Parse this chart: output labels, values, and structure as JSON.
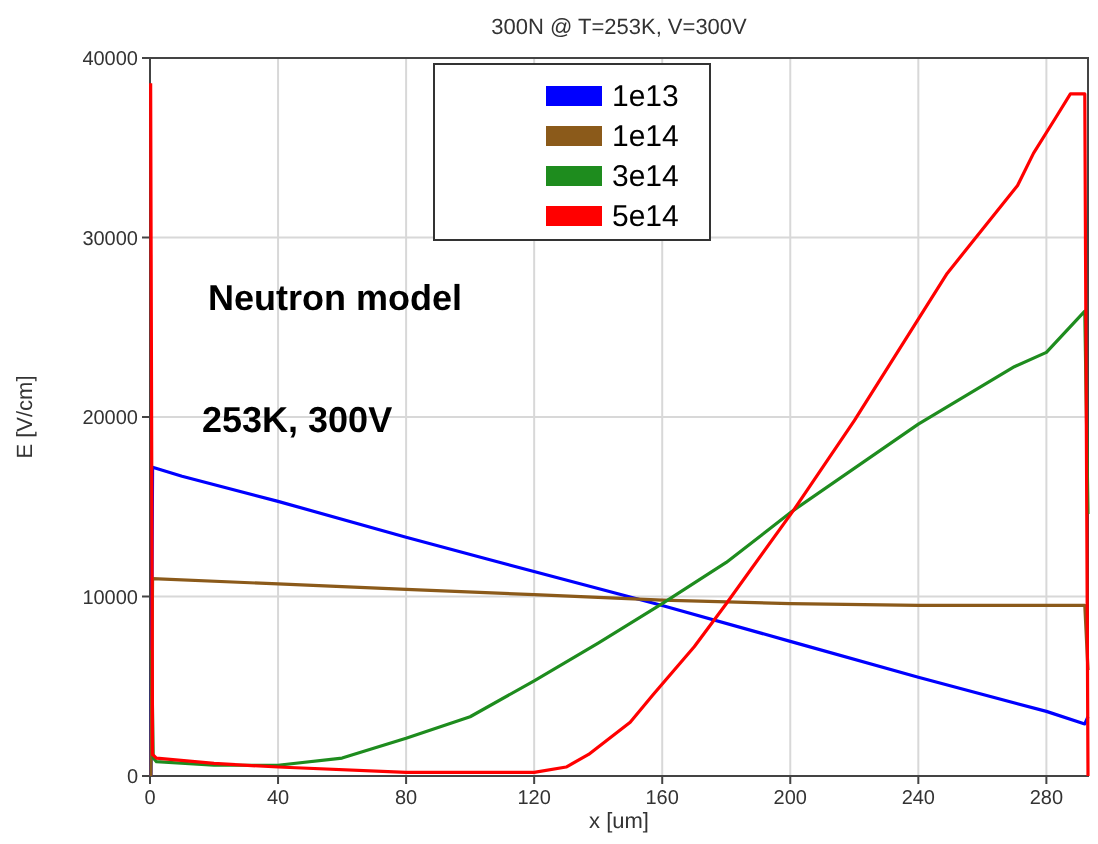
{
  "chart_data": {
    "type": "line",
    "title": "300N @ T=253K, V=300V",
    "xlabel": "x [um]",
    "ylabel": "E [V/cm]",
    "annotations": [
      "Neutron model",
      "253K, 300V"
    ],
    "xlim": [
      0,
      293
    ],
    "ylim": [
      0,
      40000
    ],
    "xticks": [
      0,
      40,
      80,
      120,
      160,
      200,
      240,
      280
    ],
    "yticks": [
      0,
      10000,
      20000,
      30000,
      40000
    ],
    "grid": true,
    "legend": "top",
    "marker": "none",
    "line_style": "solid",
    "series": [
      {
        "name": "1e13",
        "color": "#0000ff",
        "x": [
          0.3,
          0.8,
          10,
          40,
          80,
          105,
          160,
          200,
          240,
          280,
          292,
          293
        ],
        "values": [
          0,
          17200,
          16700,
          15300,
          13300,
          12100,
          9500,
          7500,
          5500,
          3600,
          2900,
          3300
        ]
      },
      {
        "name": "1e14",
        "color": "#8b5a1a",
        "x": [
          0.3,
          0.8,
          40,
          80,
          120,
          160,
          200,
          240,
          280,
          292,
          293
        ],
        "values": [
          0,
          11000,
          10700,
          10400,
          10100,
          9800,
          9600,
          9500,
          9500,
          9500,
          5900
        ]
      },
      {
        "name": "3e14",
        "color": "#1e8c1e",
        "x": [
          0.5,
          1,
          2,
          20,
          40,
          60,
          80,
          100,
          120,
          140,
          160,
          180,
          201,
          240,
          270,
          280,
          292,
          293
        ],
        "values": [
          7000,
          1000,
          800,
          600,
          600,
          1000,
          2100,
          3300,
          5300,
          7400,
          9600,
          11900,
          14800,
          19600,
          22800,
          23600,
          25900,
          14600
        ]
      },
      {
        "name": "5e14",
        "color": "#ff0000",
        "x": [
          0.2,
          0.8,
          2,
          20,
          40,
          80,
          120,
          130,
          137,
          150,
          157,
          170,
          180,
          201,
          220,
          249,
          271,
          276,
          283,
          287.5,
          292,
          293
        ],
        "values": [
          38600,
          1200,
          1000,
          700,
          500,
          200,
          200,
          500,
          1200,
          3000,
          4500,
          7200,
          9600,
          14800,
          19800,
          28000,
          32900,
          34700,
          36700,
          38000,
          38000,
          0
        ]
      }
    ]
  }
}
